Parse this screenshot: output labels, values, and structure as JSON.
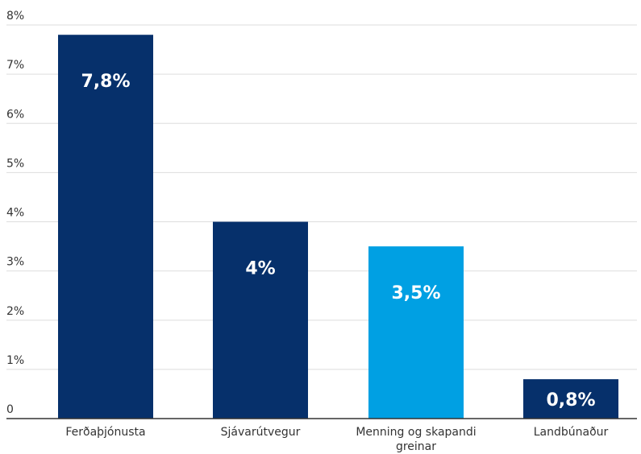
{
  "chart_data": {
    "type": "bar",
    "title": "",
    "xlabel": "",
    "ylabel": "",
    "ylim": [
      0,
      8
    ],
    "yticks": [
      {
        "value": 0,
        "label": "0"
      },
      {
        "value": 1,
        "label": "1%"
      },
      {
        "value": 2,
        "label": "2%"
      },
      {
        "value": 3,
        "label": "3%"
      },
      {
        "value": 4,
        "label": "4%"
      },
      {
        "value": 5,
        "label": "5%"
      },
      {
        "value": 6,
        "label": "6%"
      },
      {
        "value": 7,
        "label": "7%"
      },
      {
        "value": 8,
        "label": "8%"
      }
    ],
    "grid": true,
    "legend": "none",
    "categories": [
      {
        "name": "Ferðaþjónusta",
        "lines": [
          "Ferðaþjónusta"
        ]
      },
      {
        "name": "Sjávarútvegur",
        "lines": [
          "Sjávarútvegur"
        ]
      },
      {
        "name": "Menning og skapandi greinar",
        "lines": [
          "Menning og skapandi",
          "greinar"
        ]
      },
      {
        "name": "Landbúnaður",
        "lines": [
          "Landbúnaður"
        ]
      }
    ],
    "values": [
      7.8,
      4,
      3.5,
      0.8
    ],
    "data_labels": [
      "7,8%",
      "4%",
      "3,5%",
      "0,8%"
    ],
    "colors": [
      "#06306b",
      "#06306b",
      "#00a0e3",
      "#06306b"
    ],
    "colors_meta": {
      "grid": "#dddddd",
      "axis": "#333333",
      "text": "#333333",
      "label_text": "#ffffff"
    }
  }
}
